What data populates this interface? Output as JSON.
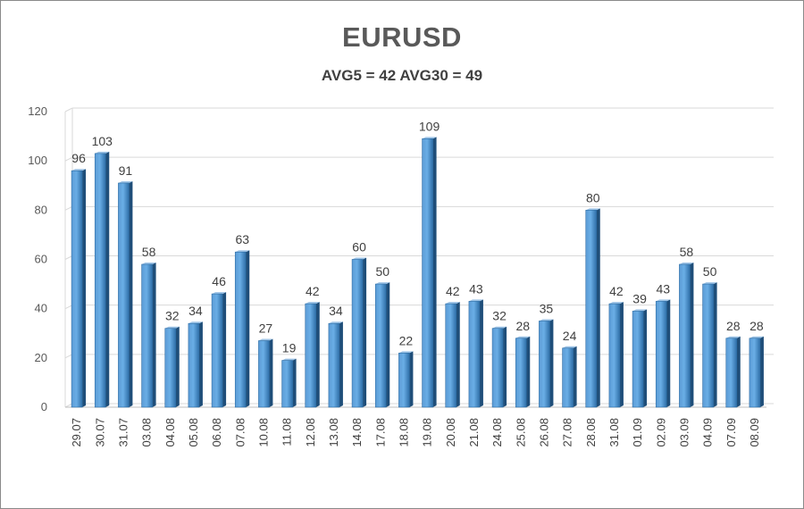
{
  "chart_data": {
    "type": "bar",
    "title": "EURUSD",
    "subtitle": "AVG5 = 42 AVG30 = 49",
    "xlabel": "",
    "ylabel": "",
    "ylim": [
      0,
      120
    ],
    "yticks": [
      0,
      20,
      40,
      60,
      80,
      100,
      120
    ],
    "grid": true,
    "legend": "none",
    "categories": [
      "29.07",
      "30.07",
      "31.07",
      "03.08",
      "04.08",
      "05.08",
      "06.08",
      "07.08",
      "10.08",
      "11.08",
      "12.08",
      "13.08",
      "14.08",
      "17.08",
      "18.08",
      "19.08",
      "20.08",
      "21.08",
      "24.08",
      "25.08",
      "26.08",
      "27.08",
      "28.08",
      "31.08",
      "01.09",
      "02.09",
      "03.09",
      "04.09",
      "07.09",
      "08.09"
    ],
    "values": [
      96,
      103,
      91,
      58,
      32,
      34,
      46,
      63,
      27,
      19,
      42,
      34,
      60,
      50,
      22,
      109,
      42,
      43,
      32,
      28,
      35,
      24,
      80,
      42,
      39,
      43,
      58,
      50,
      28,
      28
    ],
    "colors": {
      "bar_front_left": "#5b9bd5",
      "bar_front_right": "#2f6fa8",
      "bar_top": "#9dc3e6",
      "bar_side": "#1f4e79",
      "grid": "#d9d9d9"
    }
  }
}
